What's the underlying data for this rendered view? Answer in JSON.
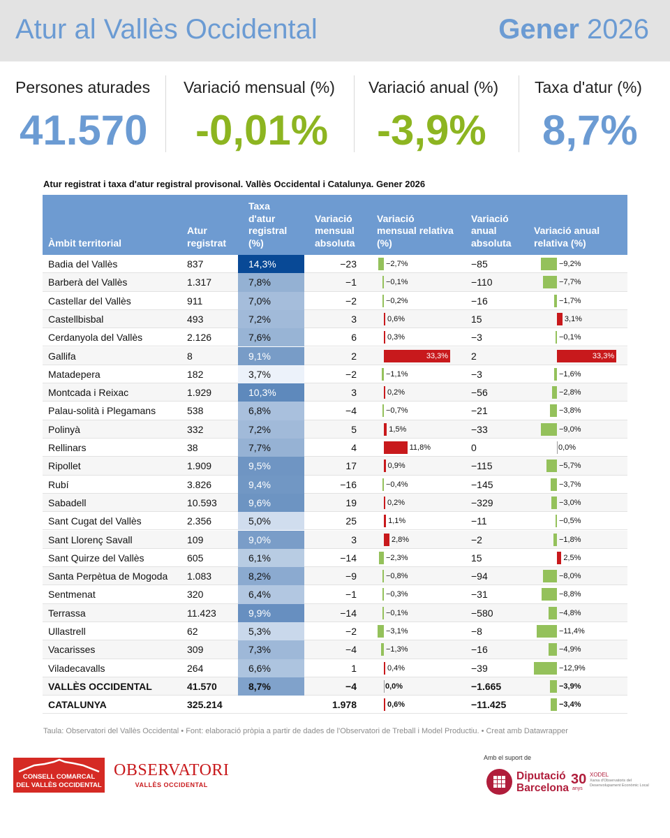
{
  "header": {
    "title": "Atur al Vallès Occidental",
    "period_month": "Gener",
    "period_year": "2026"
  },
  "kpis": [
    {
      "label": "Persones aturades",
      "value": "41.570",
      "color": "#6b9bd3"
    },
    {
      "label": "Variació mensual (%)",
      "value": "-0,01%",
      "color": "#8db521"
    },
    {
      "label": "Variació anual (%)",
      "value": "-3,9%",
      "color": "#8db521"
    },
    {
      "label": "Taxa d'atur (%)",
      "value": "8,7%",
      "color": "#6b9bd3"
    }
  ],
  "table": {
    "title": "Atur registrat i taxa d'atur registral provisonal. Vallès Occidental i Catalunya. Gener 2026",
    "headers": {
      "ambit": "Àmbit territorial",
      "atur": "Atur registrat",
      "taxa": "Taxa d'atur registral (%)",
      "mabs": "Variació mensual absoluta",
      "mrel": "Variació mensual relativa (%)",
      "aabs": "Variació anual absoluta",
      "arel": "Variació anual relativa (%)"
    },
    "rows": [
      {
        "name": "Badia del Vallès",
        "atur": "837",
        "taxa": "14,3%",
        "taxa_num": 14.3,
        "mabs": "−23",
        "mrel": "−2,7%",
        "mrel_num": -2.7,
        "aabs": "−85",
        "arel": "−9,2%",
        "arel_num": -9.2
      },
      {
        "name": "Barberà del Vallès",
        "atur": "1.317",
        "taxa": "7,8%",
        "taxa_num": 7.8,
        "mabs": "−1",
        "mrel": "−0,1%",
        "mrel_num": -0.1,
        "aabs": "−110",
        "arel": "−7,7%",
        "arel_num": -7.7
      },
      {
        "name": "Castellar del Vallès",
        "atur": "911",
        "taxa": "7,0%",
        "taxa_num": 7.0,
        "mabs": "−2",
        "mrel": "−0,2%",
        "mrel_num": -0.2,
        "aabs": "−16",
        "arel": "−1,7%",
        "arel_num": -1.7
      },
      {
        "name": "Castellbisbal",
        "atur": "493",
        "taxa": "7,2%",
        "taxa_num": 7.2,
        "mabs": "3",
        "mrel": "0,6%",
        "mrel_num": 0.6,
        "aabs": "15",
        "arel": "3,1%",
        "arel_num": 3.1
      },
      {
        "name": "Cerdanyola del Vallès",
        "atur": "2.126",
        "taxa": "7,6%",
        "taxa_num": 7.6,
        "mabs": "6",
        "mrel": "0,3%",
        "mrel_num": 0.3,
        "aabs": "−3",
        "arel": "−0,1%",
        "arel_num": -0.1
      },
      {
        "name": "Gallifa",
        "atur": "8",
        "taxa": "9,1%",
        "taxa_num": 9.1,
        "mabs": "2",
        "mrel": "33,3%",
        "mrel_num": 33.3,
        "aabs": "2",
        "arel": "33,3%",
        "arel_num": 33.3
      },
      {
        "name": "Matadepera",
        "atur": "182",
        "taxa": "3,7%",
        "taxa_num": 3.7,
        "mabs": "−2",
        "mrel": "−1,1%",
        "mrel_num": -1.1,
        "aabs": "−3",
        "arel": "−1,6%",
        "arel_num": -1.6
      },
      {
        "name": "Montcada i Reixac",
        "atur": "1.929",
        "taxa": "10,3%",
        "taxa_num": 10.3,
        "mabs": "3",
        "mrel": "0,2%",
        "mrel_num": 0.2,
        "aabs": "−56",
        "arel": "−2,8%",
        "arel_num": -2.8
      },
      {
        "name": "Palau-solità i Plegamans",
        "atur": "538",
        "taxa": "6,8%",
        "taxa_num": 6.8,
        "mabs": "−4",
        "mrel": "−0,7%",
        "mrel_num": -0.7,
        "aabs": "−21",
        "arel": "−3,8%",
        "arel_num": -3.8
      },
      {
        "name": "Polinyà",
        "atur": "332",
        "taxa": "7,2%",
        "taxa_num": 7.2,
        "mabs": "5",
        "mrel": "1,5%",
        "mrel_num": 1.5,
        "aabs": "−33",
        "arel": "−9,0%",
        "arel_num": -9.0
      },
      {
        "name": "Rellinars",
        "atur": "38",
        "taxa": "7,7%",
        "taxa_num": 7.7,
        "mabs": "4",
        "mrel": "11,8%",
        "mrel_num": 11.8,
        "aabs": "0",
        "arel": "0,0%",
        "arel_num": 0.0
      },
      {
        "name": "Ripollet",
        "atur": "1.909",
        "taxa": "9,5%",
        "taxa_num": 9.5,
        "mabs": "17",
        "mrel": "0,9%",
        "mrel_num": 0.9,
        "aabs": "−115",
        "arel": "−5,7%",
        "arel_num": -5.7
      },
      {
        "name": "Rubí",
        "atur": "3.826",
        "taxa": "9,4%",
        "taxa_num": 9.4,
        "mabs": "−16",
        "mrel": "−0,4%",
        "mrel_num": -0.4,
        "aabs": "−145",
        "arel": "−3,7%",
        "arel_num": -3.7
      },
      {
        "name": "Sabadell",
        "atur": "10.593",
        "taxa": "9,6%",
        "taxa_num": 9.6,
        "mabs": "19",
        "mrel": "0,2%",
        "mrel_num": 0.2,
        "aabs": "−329",
        "arel": "−3,0%",
        "arel_num": -3.0
      },
      {
        "name": "Sant Cugat del Vallès",
        "atur": "2.356",
        "taxa": "5,0%",
        "taxa_num": 5.0,
        "mabs": "25",
        "mrel": "1,1%",
        "mrel_num": 1.1,
        "aabs": "−11",
        "arel": "−0,5%",
        "arel_num": -0.5
      },
      {
        "name": "Sant Llorenç Savall",
        "atur": "109",
        "taxa": "9,0%",
        "taxa_num": 9.0,
        "mabs": "3",
        "mrel": "2,8%",
        "mrel_num": 2.8,
        "aabs": "−2",
        "arel": "−1,8%",
        "arel_num": -1.8
      },
      {
        "name": "Sant Quirze del Vallès",
        "atur": "605",
        "taxa": "6,1%",
        "taxa_num": 6.1,
        "mabs": "−14",
        "mrel": "−2,3%",
        "mrel_num": -2.3,
        "aabs": "15",
        "arel": "2,5%",
        "arel_num": 2.5
      },
      {
        "name": "Santa Perpètua de Mogoda",
        "atur": "1.083",
        "taxa": "8,2%",
        "taxa_num": 8.2,
        "mabs": "−9",
        "mrel": "−0,8%",
        "mrel_num": -0.8,
        "aabs": "−94",
        "arel": "−8,0%",
        "arel_num": -8.0
      },
      {
        "name": "Sentmenat",
        "atur": "320",
        "taxa": "6,4%",
        "taxa_num": 6.4,
        "mabs": "−1",
        "mrel": "−0,3%",
        "mrel_num": -0.3,
        "aabs": "−31",
        "arel": "−8,8%",
        "arel_num": -8.8
      },
      {
        "name": "Terrassa",
        "atur": "11.423",
        "taxa": "9,9%",
        "taxa_num": 9.9,
        "mabs": "−14",
        "mrel": "−0,1%",
        "mrel_num": -0.1,
        "aabs": "−580",
        "arel": "−4,8%",
        "arel_num": -4.8
      },
      {
        "name": "Ullastrell",
        "atur": "62",
        "taxa": "5,3%",
        "taxa_num": 5.3,
        "mabs": "−2",
        "mrel": "−3,1%",
        "mrel_num": -3.1,
        "aabs": "−8",
        "arel": "−11,4%",
        "arel_num": -11.4
      },
      {
        "name": "Vacarisses",
        "atur": "309",
        "taxa": "7,3%",
        "taxa_num": 7.3,
        "mabs": "−4",
        "mrel": "−1,3%",
        "mrel_num": -1.3,
        "aabs": "−16",
        "arel": "−4,9%",
        "arel_num": -4.9
      },
      {
        "name": "Viladecavalls",
        "atur": "264",
        "taxa": "6,6%",
        "taxa_num": 6.6,
        "mabs": "1",
        "mrel": "0,4%",
        "mrel_num": 0.4,
        "aabs": "−39",
        "arel": "−12,9%",
        "arel_num": -12.9
      },
      {
        "name": "VALLÈS OCCIDENTAL",
        "atur": "41.570",
        "taxa": "8,7%",
        "taxa_num": 8.7,
        "mabs": "−4",
        "mrel": "0,0%",
        "mrel_num": 0.0,
        "aabs": "−1.665",
        "arel": "−3,9%",
        "arel_num": -3.9,
        "bold": true
      },
      {
        "name": "CATALUNYA",
        "atur": "325.214",
        "taxa": "",
        "taxa_num": null,
        "mabs": "1.978",
        "mrel": "0,6%",
        "mrel_num": 0.6,
        "aabs": "−11.425",
        "arel": "−3,4%",
        "arel_num": -3.4,
        "bold": true
      }
    ]
  },
  "footer": {
    "note": "Taula: Observatori del Vallès Occidental • Font: elaboració pròpia a partir de dades de l'Observatori de Treball i Model Productiu. • Creat amb Datawrapper",
    "support": "Amb el suport de"
  },
  "logos": {
    "ccvo_line1": "CONSELL COMARCAL",
    "ccvo_line2": "DEL VALLÈS OCCIDENTAL",
    "obs_name": "OBSERVATORI",
    "obs_sub": "VALLÈS OCCIDENTAL",
    "dipu_line1": "Diputació",
    "dipu_line2": "Barcelona",
    "xodel_num": "30",
    "xodel_anys": "anys",
    "xodel_name": "XODEL",
    "xodel_sub1": "Xarxa d'Observatoris del",
    "xodel_sub2": "Desenvolupament Econòmic Local"
  },
  "colors": {
    "accent_blue": "#6b9bd3",
    "green": "#8db521",
    "bar_neg": "#94c15b",
    "bar_pos": "#c8191c",
    "header_bg": "#6e9bd1"
  }
}
